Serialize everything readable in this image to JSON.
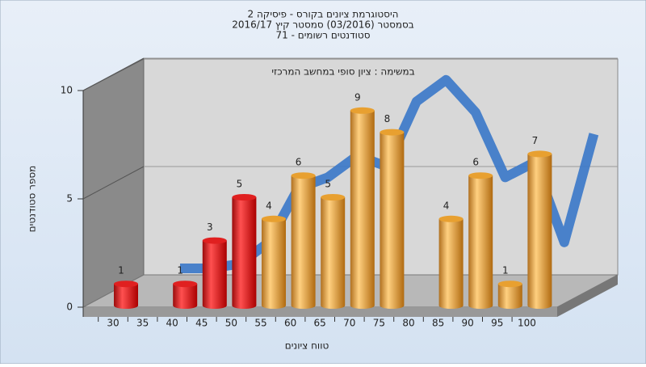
{
  "chart_data": {
    "type": "bar",
    "title": [
      "היסטוגרמת ציונים בקורס - פיסיקה 2",
      "בסמסטר  (03/2016)  סמסטר קיץ 2016/17",
      "סטודנטים רשומים - 71"
    ],
    "subtitle": "במשימה : ציון סופי במחשב המרכזי",
    "x_label": "טווח ציונים",
    "y_label": "מספר סטודנטים",
    "categories": [
      "30",
      "35",
      "40",
      "45",
      "50",
      "55",
      "60",
      "65",
      "70",
      "75",
      "80",
      "85",
      "90",
      "95",
      "100"
    ],
    "values": [
      1,
      0,
      1,
      3,
      5,
      4,
      6,
      5,
      9,
      8,
      0,
      4,
      6,
      1,
      7
    ],
    "colors": [
      "#e02020",
      "#e02020",
      "#e02020",
      "#e02020",
      "#e02020",
      "#e8a030",
      "#e8a030",
      "#e8a030",
      "#e8a030",
      "#e8a030",
      "#e8a030",
      "#e8a030",
      "#e8a030",
      "#e8a030",
      "#e8a030"
    ],
    "line": {
      "color": "#3a78c9",
      "values": [
        0.3,
        0.3,
        0.5,
        1.5,
        4,
        4.5,
        5.5,
        5,
        8,
        9,
        7.5,
        4.5,
        5.2,
        1.5,
        6.5
      ]
    },
    "ylim": [
      0,
      10
    ],
    "yticks": [
      0,
      5,
      10
    ],
    "grid": true
  }
}
